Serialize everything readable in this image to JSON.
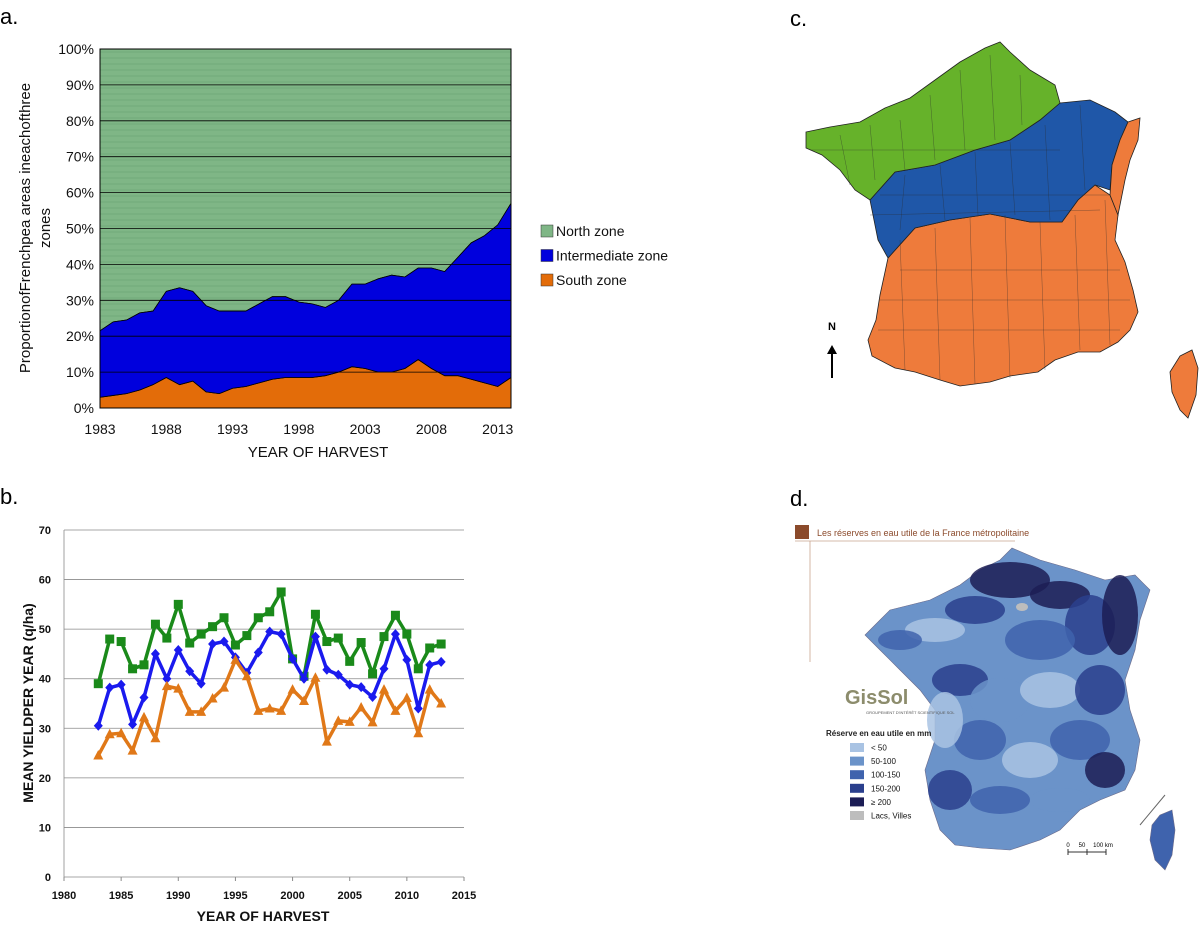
{
  "panels": {
    "a": "a.",
    "b": "b.",
    "c": "c.",
    "d": "d."
  },
  "chart_data": [
    {
      "id": "a",
      "type": "area",
      "stacked": "percent",
      "xlabel": "YEAR OF HARVEST",
      "ylabel": "ProportionofFrenchpea areas ineachofthree zones",
      "ylim": [
        0,
        100
      ],
      "y_ticks": [
        "0%",
        "10%",
        "20%",
        "30%",
        "40%",
        "50%",
        "60%",
        "70%",
        "80%",
        "90%",
        "100%"
      ],
      "x_ticks": [
        "1983",
        "1988",
        "1993",
        "1998",
        "2003",
        "2008",
        "2013"
      ],
      "grid": true,
      "legend_position": "right",
      "x": [
        1983,
        1984,
        1985,
        1986,
        1987,
        1988,
        1989,
        1990,
        1991,
        1992,
        1993,
        1994,
        1995,
        1996,
        1997,
        1998,
        1999,
        2000,
        2001,
        2002,
        2003,
        2004,
        2005,
        2006,
        2007,
        2008,
        2009,
        2010,
        2011,
        2012,
        2013,
        2014
      ],
      "series": [
        {
          "name": "South zone",
          "color": "#e36c09",
          "values": [
            3,
            3.5,
            4,
            5,
            6.5,
            8.5,
            6.5,
            7.5,
            4.5,
            4,
            5.5,
            6,
            7,
            8,
            8.5,
            8.5,
            8.5,
            9,
            10,
            11.5,
            11,
            10,
            10,
            11,
            13.5,
            11,
            9,
            9,
            8,
            7,
            6,
            8.5
          ]
        },
        {
          "name": "Intermediate zone",
          "color": "#0000dd",
          "values": [
            18.5,
            20.5,
            20.5,
            21.5,
            20.5,
            24,
            27,
            25,
            24,
            23,
            21.5,
            21,
            22,
            23,
            22.5,
            21,
            20.5,
            19,
            20,
            23,
            23.5,
            26,
            27,
            25.5,
            25.5,
            28,
            29,
            33,
            38,
            41,
            45,
            48.5
          ]
        },
        {
          "name": "North zone",
          "color": "#7fb686",
          "values": [
            78.5,
            76,
            75.5,
            73.5,
            73,
            67.5,
            66.5,
            67.5,
            71.5,
            73,
            73,
            73,
            71,
            69,
            69,
            70.5,
            71,
            72,
            70,
            65.5,
            65.5,
            64,
            63,
            63.5,
            61,
            61,
            62,
            58,
            54,
            52,
            49,
            43
          ]
        }
      ]
    },
    {
      "id": "b",
      "type": "line",
      "xlabel": "YEAR OF HARVEST",
      "ylabel": "MEAN YIELDPER YEAR (q/ha)",
      "xlim": [
        1980,
        2015
      ],
      "ylim": [
        0,
        70
      ],
      "x_ticks": [
        "1980",
        "1985",
        "1990",
        "1995",
        "2000",
        "2005",
        "2010",
        "2015"
      ],
      "y_ticks": [
        "0",
        "10",
        "20",
        "30",
        "40",
        "50",
        "60",
        "70"
      ],
      "grid": true,
      "x": [
        1983,
        1984,
        1985,
        1986,
        1987,
        1988,
        1989,
        1990,
        1991,
        1992,
        1993,
        1994,
        1995,
        1996,
        1997,
        1998,
        1999,
        2000,
        2001,
        2002,
        2003,
        2004,
        2005,
        2006,
        2007,
        2008,
        2009,
        2010,
        2011,
        2012,
        2013
      ],
      "series": [
        {
          "color": "#1a8a1a",
          "marker": "square",
          "gaps_after": [
            1984,
            2000
          ],
          "values": [
            39,
            48,
            47.5,
            42,
            42.8,
            51,
            48.2,
            55,
            47.2,
            49,
            50.5,
            52.3,
            46.8,
            48.7,
            52.3,
            53.5,
            57.5,
            44,
            40.5,
            53,
            47.5,
            48.2,
            43.5,
            47.3,
            41,
            48.5,
            52.8,
            49,
            42,
            46.2,
            47
          ]
        },
        {
          "color": "#1a1aee",
          "marker": "diamond",
          "gaps_after": [],
          "values": [
            30.5,
            38.2,
            38.8,
            30.8,
            36.2,
            45,
            40,
            45.8,
            41.5,
            39,
            47,
            47.5,
            44.3,
            41.2,
            45.3,
            49.5,
            49,
            44,
            40,
            48.5,
            41.8,
            40.8,
            38.8,
            38.3,
            36.3,
            42,
            49,
            43.8,
            34,
            42.8,
            43.4
          ]
        },
        {
          "color": "#e07818",
          "marker": "triangle",
          "gaps_after": [],
          "values": [
            24.5,
            28.8,
            29,
            25.5,
            32.2,
            28,
            38.5,
            38,
            33.3,
            33.3,
            36,
            38.2,
            43.8,
            40.5,
            33.5,
            34,
            33.5,
            37.8,
            35.5,
            40.2,
            27.3,
            31.5,
            31.3,
            34.2,
            31.2,
            37.8,
            33.5,
            36.1,
            29,
            37.8,
            35
          ]
        }
      ]
    }
  ],
  "map_c": {
    "north_arrow_label": "N",
    "colors": {
      "north": "#66b22a",
      "intermediate": "#1f57a8",
      "south": "#ee7b3b"
    }
  },
  "map_d": {
    "title": "Les réserves en eau utile de la France métropolitaine",
    "logo_text": "GisSol",
    "logo_subtext": "GROUPEMENT D'INTÉRÊT SCIENTIFIQUE SOL",
    "legend_title": "Réserve en eau utile en mm",
    "legend": [
      {
        "label": "< 50",
        "color": "#a9c3e3"
      },
      {
        "label": "50-100",
        "color": "#6b93c9"
      },
      {
        "label": "100-150",
        "color": "#3f63ad"
      },
      {
        "label": "150-200",
        "color": "#2a3f8d"
      },
      {
        "label": "≥ 200",
        "color": "#1c1d55"
      },
      {
        "label": "Lacs, Villes",
        "color": "#bdbdbd"
      }
    ],
    "scale_labels": [
      "0",
      "50",
      "100 km"
    ],
    "title_color": "#8b4a2b"
  }
}
